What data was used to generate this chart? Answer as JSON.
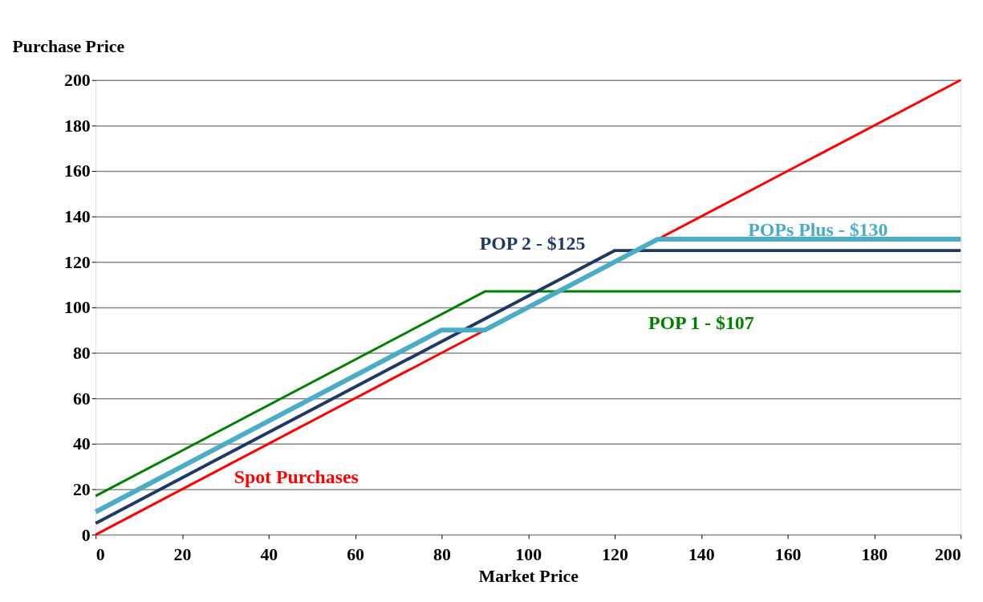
{
  "chart_data": {
    "type": "line",
    "xlabel": "Market Price",
    "ylabel": "Purchase Price",
    "xlim": [
      0,
      200
    ],
    "xticks": [
      0,
      20,
      40,
      60,
      80,
      100,
      120,
      140,
      160,
      180,
      200
    ],
    "ylim": [
      0,
      200
    ],
    "yticks": [
      0,
      20,
      40,
      60,
      80,
      100,
      120,
      140,
      160,
      180,
      200
    ],
    "grid": "y",
    "legend": false,
    "marker": "none",
    "line_style": "solid",
    "series": [
      {
        "name": "Spot Purchases",
        "color": "#ff0000",
        "x": [
          0,
          200
        ],
        "values": [
          0,
          200
        ]
      },
      {
        "name": "POP 1 - $107",
        "color": "#008000",
        "x": [
          0,
          90,
          200
        ],
        "values": [
          17,
          107,
          107
        ]
      },
      {
        "name": "POP 2 - $125",
        "color": "#1f3864",
        "x": [
          0,
          120,
          200
        ],
        "values": [
          5,
          125,
          125
        ]
      },
      {
        "name": "POPs Plus - $130",
        "color": "#4bacc6",
        "x": [
          0,
          80,
          90,
          130,
          200
        ],
        "values": [
          10,
          90,
          90,
          130,
          130
        ]
      }
    ]
  }
}
